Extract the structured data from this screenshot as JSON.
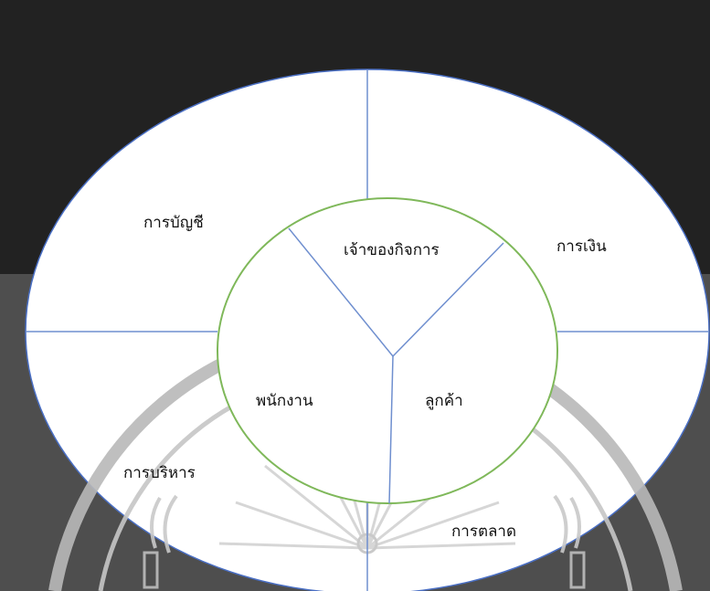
{
  "colors": {
    "background_dark": "#222222",
    "background_gray": "#4e4e4e",
    "ellipse_fill": "#ffffff",
    "outer_outline": "#4a6fc4",
    "divider_lines": "#6f8fcf",
    "inner_circle": "#7fb85a",
    "watermark": "#b7b7b7"
  },
  "outer_ring": {
    "top_left": "การบัญชี",
    "top_right": "การเงิน",
    "bottom_left": "การบริหาร",
    "bottom_right": "การตลาด"
  },
  "inner_circle": {
    "top": "เจ้าของกิจการ",
    "left": "พนักงาน",
    "right": "ลูกค้า"
  }
}
